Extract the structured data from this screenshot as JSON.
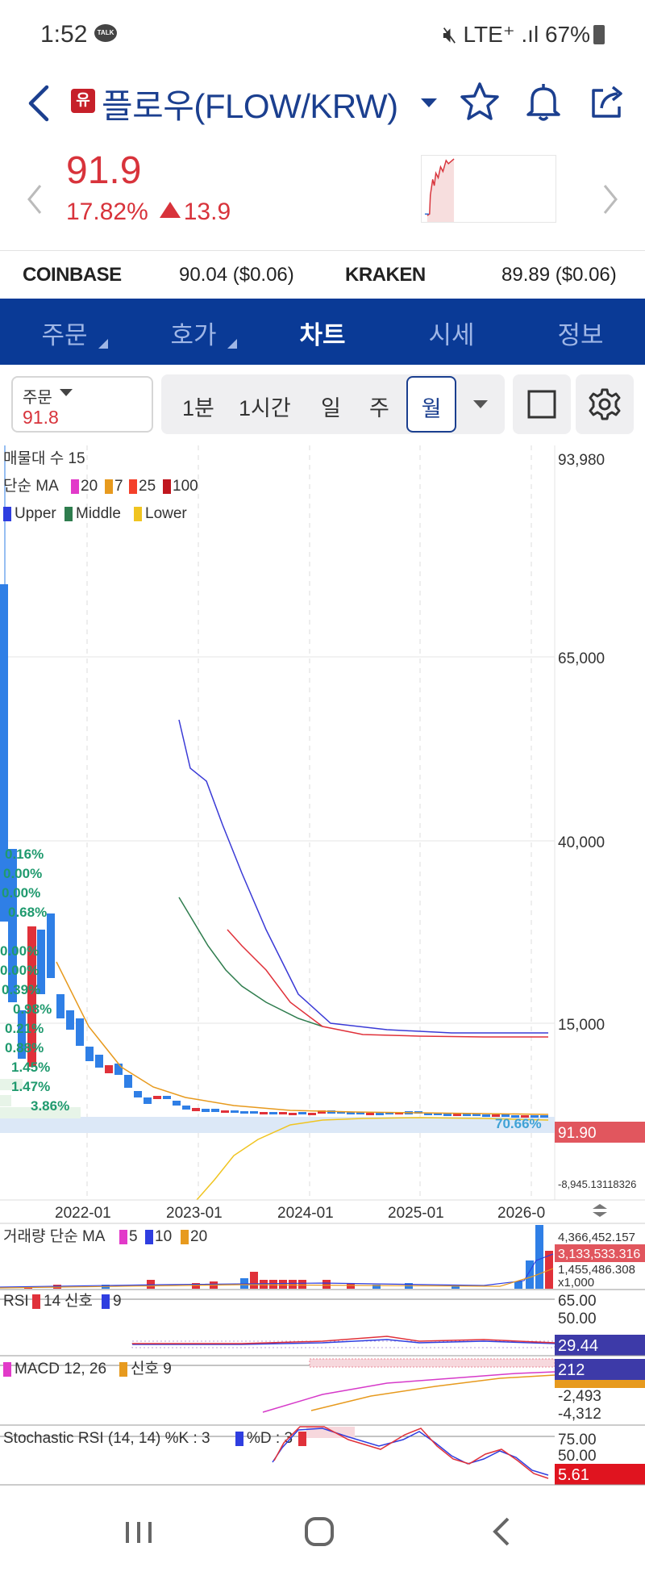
{
  "status": {
    "time": "1:52",
    "talk_badge": "TALK",
    "network": "LTE⁺ .ıl",
    "battery": "67%"
  },
  "header": {
    "badge": "유",
    "title": "플로우(FLOW/KRW)"
  },
  "price": {
    "current": "91.9",
    "change_pct": "17.82%",
    "change_abs": "13.9",
    "color_up": "#d8333b"
  },
  "exchanges": [
    {
      "name": "COINBASE",
      "value": "90.04 ($0.06)"
    },
    {
      "name": "KRAKEN",
      "value": "89.89 ($0.06)"
    }
  ],
  "tabs": [
    "주문",
    "호가",
    "차트",
    "시세",
    "정보"
  ],
  "active_tab": "차트",
  "toolbar": {
    "order_label": "주문",
    "order_value": "91.8",
    "periods": [
      "1분",
      "1시간",
      "일",
      "주"
    ],
    "selected_period": "월"
  },
  "chart": {
    "legend_volume_profile": "매물대 수 15",
    "legend_ma": {
      "label": "단순 MA",
      "items": [
        "20",
        "7",
        "25",
        "100"
      ]
    },
    "legend_bands": [
      "Upper",
      "Middle",
      "Lower"
    ],
    "y_labels": [
      "93,980",
      "65,000",
      "40,000",
      "15,000"
    ],
    "current_price_label": "91.90",
    "min_label": "-8,945.13118326",
    "band_pct": "70.66%",
    "profile_pcts": [
      "0.16%",
      "0.00%",
      "0.00%",
      "0.68%",
      "0.00%",
      "0.00%",
      "0.39%",
      "0.98%",
      "0.21%",
      "0.88%",
      "1.45%",
      "1.47%",
      "3.86%"
    ],
    "x_labels": [
      "2022-01",
      "2023-01",
      "2024-01",
      "2025-01",
      "2026-0"
    ],
    "volume": {
      "legend": "거래량 단순 MA",
      "ma": [
        "5",
        "10",
        "20"
      ],
      "labels": [
        "4,366,452.157",
        "3,133,533.316",
        "1,455,486.308",
        "x1,000"
      ]
    },
    "rsi": {
      "legend": "RSI",
      "period": "14",
      "signal_label": "신호",
      "signal": "9",
      "labels": [
        "65.00",
        "50.00",
        "29.44"
      ]
    },
    "macd": {
      "legend": "MACD 12, 26",
      "signal_label": "신호 9",
      "labels": [
        "212",
        "-2,493",
        "-4,312"
      ]
    },
    "stoch": {
      "legend": "Stochastic RSI (14, 14) %K : 3",
      "d_label": "%D : 3",
      "labels": [
        "75.00",
        "50.00",
        "5.61"
      ]
    }
  }
}
